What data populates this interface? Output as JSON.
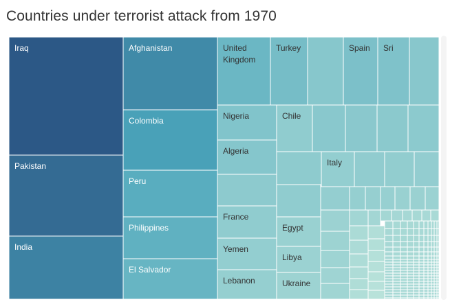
{
  "title": "Countries under terrorist attack from 1970",
  "chart_data": {
    "type": "treemap",
    "title": "Countries under terrorist attack from 1970",
    "color_scale": {
      "low": "#b8e2da",
      "mid": "#4aa5bb",
      "high": "#2c5886"
    },
    "labeled_items": [
      {
        "name": "Iraq",
        "level": 1.0
      },
      {
        "name": "Pakistan",
        "level": 0.9
      },
      {
        "name": "India",
        "level": 0.78
      },
      {
        "name": "Afghanistan",
        "level": 0.74
      },
      {
        "name": "Colombia",
        "level": 0.62
      },
      {
        "name": "Peru",
        "level": 0.52
      },
      {
        "name": "Philippines",
        "level": 0.48
      },
      {
        "name": "El Salvador",
        "level": 0.44
      },
      {
        "name": "United\nKingdom",
        "level": 0.42
      },
      {
        "name": "Turkey",
        "level": 0.36
      },
      {
        "name": "Spain",
        "level": 0.33
      },
      {
        "name": "Sri",
        "level": 0.31
      },
      {
        "name": "Nigeria",
        "level": 0.3
      },
      {
        "name": "Algeria",
        "level": 0.28
      },
      {
        "name": "Chile",
        "level": 0.22
      },
      {
        "name": "Italy",
        "level": 0.2
      },
      {
        "name": "France",
        "level": 0.22
      },
      {
        "name": "Yemen",
        "level": 0.2
      },
      {
        "name": "Lebanon",
        "level": 0.19
      },
      {
        "name": "Egypt",
        "level": 0.17
      },
      {
        "name": "Libya",
        "level": 0.16
      },
      {
        "name": "Ukraine",
        "level": 0.15
      }
    ],
    "unlabeled_level_range": [
      0.0,
      0.27
    ]
  }
}
